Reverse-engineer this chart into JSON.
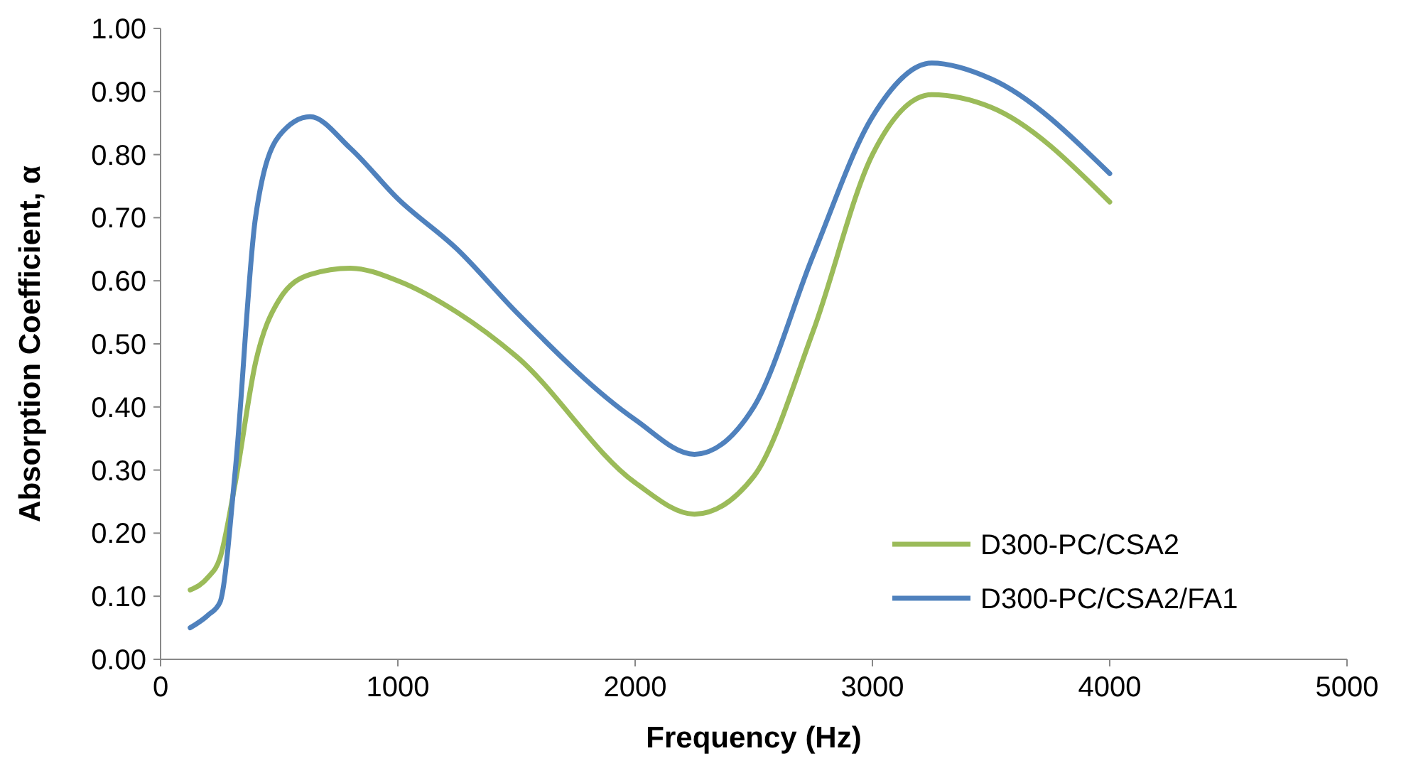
{
  "chart_data": {
    "type": "line",
    "xlabel": "Frequency (Hz)",
    "ylabel": "Absorption Coefficient, α",
    "xlim": [
      0,
      5000
    ],
    "xticks": [
      0,
      1000,
      2000,
      3000,
      4000,
      5000
    ],
    "ylim": [
      0,
      1
    ],
    "yticks": [
      {
        "value": 0,
        "label": "0.00"
      },
      {
        "value": 0.1,
        "label": "0.10"
      },
      {
        "value": 0.2,
        "label": "0.20"
      },
      {
        "value": 0.3,
        "label": "0.30"
      },
      {
        "value": 0.4,
        "label": "0.40"
      },
      {
        "value": 0.5,
        "label": "0.50"
      },
      {
        "value": 0.6,
        "label": "0.60"
      },
      {
        "value": 0.7,
        "label": "0.70"
      },
      {
        "value": 0.8,
        "label": "0.80"
      },
      {
        "value": 0.9,
        "label": "0.90"
      },
      {
        "value": 1,
        "label": "1.00"
      }
    ],
    "grid": false,
    "legend": "right",
    "marker": "none",
    "line_style": "solid",
    "x": [
      125,
      200,
      250,
      315,
      400,
      500,
      630,
      800,
      1000,
      1250,
      1500,
      2000,
      2250,
      2500,
      2750,
      3000,
      3250,
      3500,
      4000
    ],
    "series": [
      {
        "name": "D300-PC/CSA2",
        "color": "#9bbb59",
        "values": [
          0.11,
          0.13,
          0.16,
          0.28,
          0.47,
          0.57,
          0.61,
          0.62,
          0.6,
          0.55,
          0.48,
          0.28,
          0.23,
          0.29,
          0.52,
          0.8,
          0.895,
          0.875,
          0.725
        ]
      },
      {
        "name": "D300-PC/CSA2/FA1",
        "color": "#4f81bd",
        "values": [
          0.05,
          0.07,
          0.09,
          0.3,
          0.7,
          0.83,
          0.86,
          0.81,
          0.73,
          0.65,
          0.55,
          0.38,
          0.325,
          0.4,
          0.64,
          0.86,
          0.945,
          0.92,
          0.77
        ]
      }
    ]
  }
}
